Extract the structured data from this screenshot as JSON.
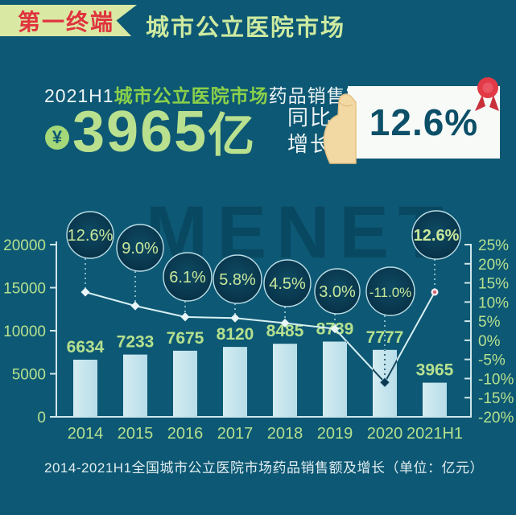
{
  "page": {
    "background": "#0d5874"
  },
  "header": {
    "badge": {
      "label": "第一终端",
      "bg": "#d9e9a3",
      "text_color": "#e0333f"
    },
    "title": {
      "label": "城市公立医院市场",
      "color": "#cdeaa0"
    }
  },
  "stat": {
    "line1": {
      "prefix": "2021H1",
      "highlight": "城市公立医院市场",
      "suffix": "药品销售额达",
      "highlight_color": "#8bd04a"
    },
    "amount": {
      "currency_symbol": "¥",
      "value": "3965",
      "unit": "亿",
      "color": "#b9e08e"
    },
    "growth": {
      "label_line1": "同比",
      "label_line2": "增长",
      "value": "12.6%",
      "card_bg": "#f7faf7",
      "value_color": "#0c4f68",
      "ribbon_color": "#e23a46"
    }
  },
  "watermark": "MENET",
  "chart_data": {
    "type": "bar",
    "title": "2014-2021H1全国城市公立医院市场药品销售额及增长（单位：亿元）",
    "categories": [
      "2014",
      "2015",
      "2016",
      "2017",
      "2018",
      "2019",
      "2020",
      "2021H1"
    ],
    "bar_values": [
      6634,
      7233,
      7675,
      8120,
      8485,
      8739,
      7777,
      3965
    ],
    "bar_value_labels": [
      "6634",
      "7233",
      "7675",
      "8120",
      "8485",
      "8739",
      "7777",
      "3965"
    ],
    "growth_pct": [
      12.6,
      9.0,
      6.1,
      5.8,
      4.5,
      3.0,
      -11.0,
      12.6
    ],
    "growth_labels": [
      "12.6%",
      "9.0%",
      "6.1%",
      "5.8%",
      "4.5%",
      "3.0%",
      "-11.0%",
      "12.6%"
    ],
    "left_axis": {
      "range": [
        0,
        20000
      ],
      "tick_labels": [
        "20000",
        "15000",
        "10000",
        "5000",
        "0"
      ]
    },
    "right_axis": {
      "range": [
        -20,
        25
      ],
      "tick_labels": [
        "25%",
        "20%",
        "15%",
        "10%",
        "5%",
        "0%",
        "-5%",
        "-10%",
        "-15%",
        "-20%"
      ]
    },
    "grid": false,
    "legend": false,
    "bar_color": "#bfe0ea",
    "line_color": "#d8f0f4",
    "label_color": "#b5e08f",
    "bubble_fill": "#0a3a52",
    "bubble_stroke": "#b9dde6",
    "axis_color": "#cfe6ea"
  }
}
